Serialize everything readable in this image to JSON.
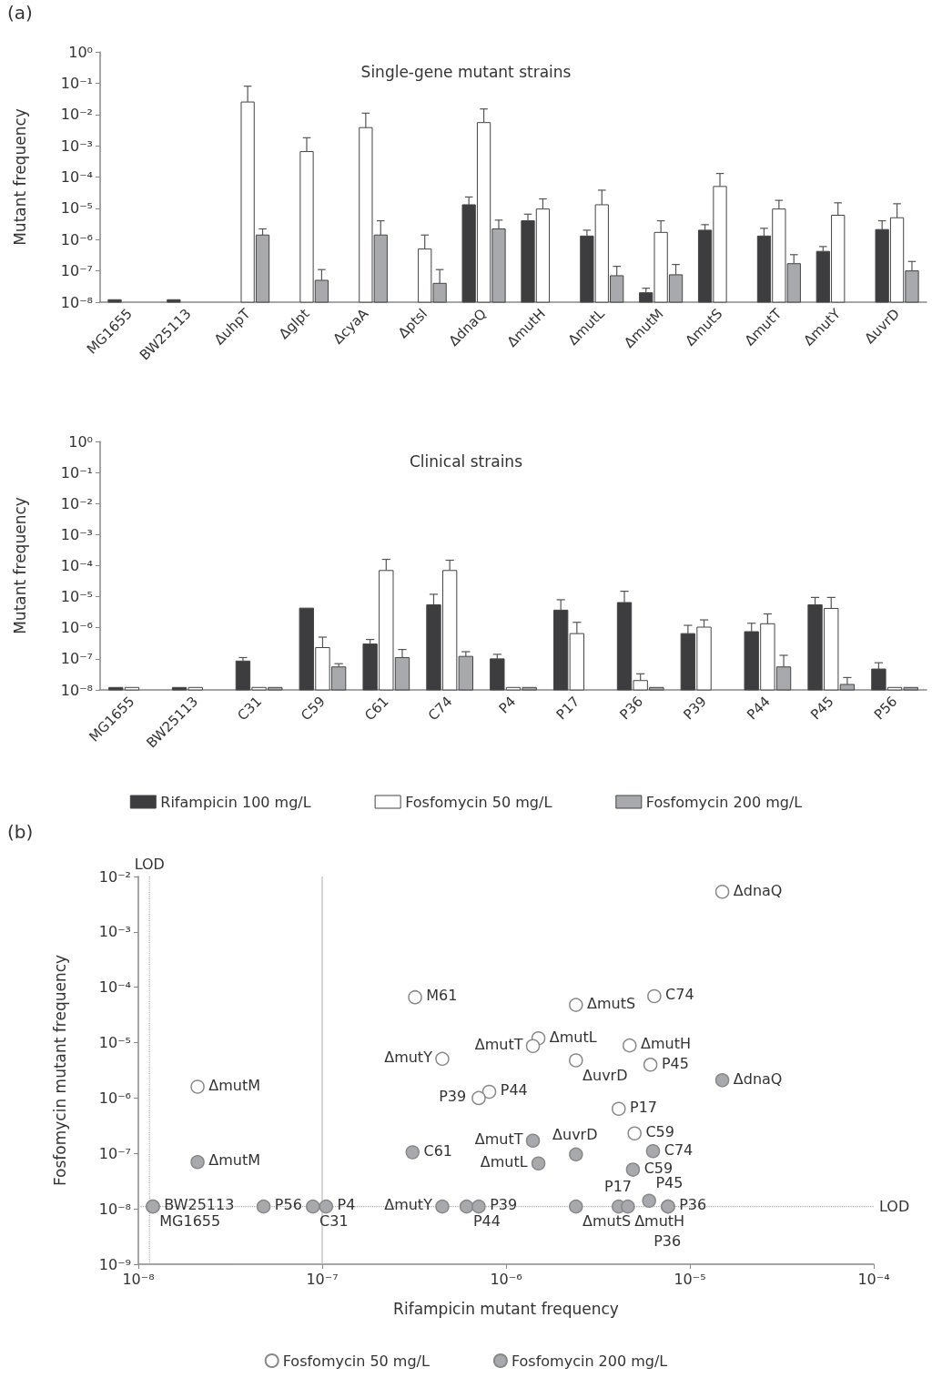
{
  "chart_data": [
    {
      "type": "bar",
      "title": "Single-gene mutant strains",
      "ylabel": "Mutant frequency",
      "annotations": [
        "(a)"
      ],
      "categories": [
        "MG1655",
        "BW25113",
        "ΔuhpT",
        "Δglpt",
        "ΔcyaA",
        "Δptsl",
        "ΔdnaQ",
        "ΔmutH",
        "ΔmutL",
        "ΔmutM",
        "ΔmutS",
        "ΔmutT",
        "ΔmutY",
        "ΔuvrD"
      ],
      "log": "y",
      "ylim": [
        1e-08,
        1
      ],
      "yticks": [
        {
          "value": 1,
          "label": "10⁰"
        },
        {
          "value": 0.1,
          "label": "10⁻¹"
        },
        {
          "value": 0.01,
          "label": "10⁻²"
        },
        {
          "value": 0.001,
          "label": "10⁻³"
        },
        {
          "value": 0.0001,
          "label": "10⁻⁴"
        },
        {
          "value": 1e-05,
          "label": "10⁻⁵"
        },
        {
          "value": 1e-06,
          "label": "10⁻⁶"
        },
        {
          "value": 1e-07,
          "label": "10⁻⁷"
        },
        {
          "value": 1e-08,
          "label": "10⁻⁸"
        }
      ],
      "grid": false,
      "legend": false,
      "series": [
        {
          "color": "#3d3d3f",
          "values": [
            1.2e-08,
            1.2e-08,
            null,
            null,
            null,
            null,
            1.3e-05,
            4e-06,
            1.3e-06,
            2e-08,
            2e-06,
            1.3e-06,
            4.2e-07,
            2.1e-06
          ],
          "errors": [
            null,
            null,
            null,
            null,
            null,
            null,
            [
              1.3e-05,
              2.3e-05
            ],
            [
              4e-06,
              6.5e-06
            ],
            [
              1.3e-06,
              2e-06
            ],
            [
              2e-08,
              2.8e-08
            ],
            [
              2e-06,
              3e-06
            ],
            [
              1.3e-06,
              2.3e-06
            ],
            [
              4.2e-07,
              6e-07
            ],
            [
              2.1e-06,
              4e-06
            ]
          ]
        },
        {
          "color": "#ffffff",
          "values": [
            null,
            null,
            0.025,
            0.00065,
            0.0038,
            5e-07,
            0.0055,
            9.5e-06,
            1.3e-05,
            1.7e-06,
            5e-05,
            9.5e-06,
            6e-06,
            5e-06
          ],
          "errors": [
            null,
            null,
            [
              0.025,
              0.08
            ],
            [
              0.00065,
              0.0018
            ],
            [
              0.0038,
              0.011
            ],
            [
              5e-07,
              1.4e-06
            ],
            [
              0.0055,
              0.015
            ],
            [
              9.5e-06,
              2e-05
            ],
            [
              1.3e-05,
              3.8e-05
            ],
            [
              1.7e-06,
              4e-06
            ],
            [
              5e-05,
              0.00013
            ],
            [
              9.5e-06,
              1.8e-05
            ],
            [
              6e-06,
              1.5e-05
            ],
            [
              5e-06,
              1.4e-05
            ]
          ]
        },
        {
          "color": "#a7a9ac",
          "values": [
            null,
            null,
            1.4e-06,
            5e-08,
            1.4e-06,
            4e-08,
            2.2e-06,
            null,
            7e-08,
            7.5e-08,
            null,
            1.7e-07,
            null,
            1e-07
          ],
          "errors": [
            null,
            null,
            [
              1.4e-06,
              2.2e-06
            ],
            [
              5e-08,
              1.1e-07
            ],
            [
              1.4e-06,
              4e-06
            ],
            [
              4e-08,
              1.1e-07
            ],
            [
              2.2e-06,
              4.2e-06
            ],
            null,
            [
              7e-08,
              1.4e-07
            ],
            [
              7.5e-08,
              1.6e-07
            ],
            null,
            [
              1.7e-07,
              3.3e-07
            ],
            null,
            [
              1e-07,
              2e-07
            ]
          ]
        }
      ]
    },
    {
      "type": "bar",
      "title": "Clinical strains",
      "ylabel": "Mutant frequency",
      "categories": [
        "MG1655",
        "BW25113",
        "C31",
        "C59",
        "C61",
        "C74",
        "P4",
        "P17",
        "P36",
        "P39",
        "P44",
        "P45",
        "P56"
      ],
      "log": "y",
      "ylim": [
        1e-08,
        1
      ],
      "yticks": [
        {
          "value": 1,
          "label": "10⁰"
        },
        {
          "value": 0.1,
          "label": "10⁻¹"
        },
        {
          "value": 0.01,
          "label": "10⁻²"
        },
        {
          "value": 0.001,
          "label": "10⁻³"
        },
        {
          "value": 0.0001,
          "label": "10⁻⁴"
        },
        {
          "value": 1e-05,
          "label": "10⁻⁵"
        },
        {
          "value": 1e-06,
          "label": "10⁻⁶"
        },
        {
          "value": 1e-07,
          "label": "10⁻⁷"
        },
        {
          "value": 1e-08,
          "label": "10⁻⁸"
        }
      ],
      "grid": false,
      "legend": "bottom",
      "series": [
        {
          "name": "Rifampicin 100 mg/L",
          "color": "#3d3d3f",
          "values": [
            1.2e-08,
            1.2e-08,
            8.5e-08,
            4.3e-06,
            3e-07,
            5.5e-06,
            1e-07,
            3.7e-06,
            6.5e-06,
            6.5e-07,
            7.5e-07,
            5.5e-06,
            4.7e-08
          ],
          "errors": [
            null,
            null,
            [
              8.5e-08,
              1.1e-07
            ],
            null,
            [
              3e-07,
              4.2e-07
            ],
            [
              5.5e-06,
              1.2e-05
            ],
            [
              1e-07,
              1.4e-07
            ],
            [
              3.7e-06,
              8e-06
            ],
            [
              6.5e-06,
              1.5e-05
            ],
            [
              6.5e-07,
              1.2e-06
            ],
            [
              7.5e-07,
              1.4e-06
            ],
            [
              5.5e-06,
              9.5e-06
            ],
            [
              4.7e-08,
              7.5e-08
            ]
          ]
        },
        {
          "name": "Fosfomycin 50 mg/L",
          "color": "#ffffff",
          "values": [
            1.2e-08,
            1.2e-08,
            1.2e-08,
            2.3e-07,
            7e-05,
            7e-05,
            1.2e-08,
            6.5e-07,
            2e-08,
            1.05e-06,
            1.35e-06,
            4.2e-06,
            1.2e-08
          ],
          "errors": [
            null,
            null,
            null,
            [
              2.3e-07,
              5e-07
            ],
            [
              7e-05,
              0.00016
            ],
            [
              7e-05,
              0.00015
            ],
            null,
            [
              6.5e-07,
              1.5e-06
            ],
            [
              2e-08,
              3.3e-08
            ],
            [
              1.05e-06,
              1.8e-06
            ],
            [
              1.35e-06,
              2.8e-06
            ],
            [
              4.2e-06,
              9.5e-06
            ],
            null
          ]
        },
        {
          "name": "Fosfomycin 200 mg/L",
          "color": "#a7a9ac",
          "values": [
            null,
            null,
            1.2e-08,
            5.5e-08,
            1.1e-07,
            1.2e-07,
            1.2e-08,
            null,
            1.2e-08,
            null,
            5.5e-08,
            1.5e-08,
            1.2e-08
          ],
          "errors": [
            null,
            null,
            null,
            [
              5.5e-08,
              7e-08
            ],
            [
              1.1e-07,
              2e-07
            ],
            [
              1.2e-07,
              1.7e-07
            ],
            null,
            null,
            null,
            null,
            [
              5.5e-08,
              1.3e-07
            ],
            [
              1.5e-08,
              2.5e-08
            ],
            null
          ]
        }
      ]
    },
    {
      "type": "scatter",
      "annotations": [
        "(b)"
      ],
      "xlabel": "Rifampicin mutant frequency",
      "ylabel": "Fosfomycin mutant frequency",
      "log": "xy",
      "xlim": [
        1e-08,
        0.0001
      ],
      "ylim": [
        1e-09,
        0.01
      ],
      "xticks": [
        {
          "value": 1e-08,
          "label": "10⁻⁸"
        },
        {
          "value": 1e-07,
          "label": "10⁻⁷"
        },
        {
          "value": 1e-06,
          "label": "10⁻⁶"
        },
        {
          "value": 1e-05,
          "label": "10⁻⁵"
        },
        {
          "value": 0.0001,
          "label": "10⁻⁴"
        }
      ],
      "yticks": [
        {
          "value": 0.01,
          "label": "10⁻²"
        },
        {
          "value": 0.001,
          "label": "10⁻³"
        },
        {
          "value": 0.0001,
          "label": "10⁻⁴"
        },
        {
          "value": 1e-05,
          "label": "10⁻⁵"
        },
        {
          "value": 1e-06,
          "label": "10⁻⁶"
        },
        {
          "value": 1e-07,
          "label": "10⁻⁷"
        },
        {
          "value": 1e-08,
          "label": "10⁻⁸"
        },
        {
          "value": 1e-09,
          "label": "10⁻⁹"
        }
      ],
      "grid": false,
      "legend": "bottom",
      "marker": "circle",
      "ref_lines": [
        {
          "axis": "x",
          "value": 1.15e-08,
          "label": "LOD",
          "line_style": "dotted",
          "color": "#aaaaaa"
        },
        {
          "axis": "x",
          "value": 1e-07,
          "label": null,
          "line_style": "solid",
          "color": "#bbbbbb"
        },
        {
          "axis": "y",
          "value": 1.1e-08,
          "label": "LOD",
          "line_style": "dotted",
          "color": "#aaaaaa"
        }
      ],
      "series": [
        {
          "name": "Fosfomycin 50 mg/L",
          "color": "#ffffff",
          "x": [
            1.5e-05,
            3.2e-07,
            2.4e-06,
            6.4e-06,
            1.5e-06,
            1.4e-06,
            4.5e-07,
            4.7e-06,
            2.4e-06,
            6.1e-06,
            8.1e-07,
            7.1e-07,
            2.1e-08,
            4.1e-06,
            5e-06
          ],
          "values": [
            0.0053,
            6.6e-05,
            4.8e-05,
            6.9e-05,
            1.2e-05,
            8.7e-06,
            5.1e-06,
            8.9e-06,
            4.8e-06,
            4e-06,
            1.3e-06,
            1e-06,
            1.6e-06,
            6.4e-07,
            2.3e-07
          ],
          "value_labels": [
            "ΔdnaQ",
            "M61",
            "ΔmutS",
            "C74",
            "ΔmutL",
            "ΔmutT",
            "ΔmutY",
            "ΔmutH",
            "ΔuvrD",
            "P45",
            "P44",
            "P39",
            "ΔmutM",
            "P17",
            "C59"
          ]
        },
        {
          "name": "Fosfomycin 200 mg/L",
          "color": "#a7a9ac",
          "x": [
            1.5e-05,
            1.4e-06,
            6.3e-06,
            3.1e-07,
            2.4e-06,
            1.5e-06,
            2.1e-08,
            4.9e-06,
            1.2e-08,
            1.2e-08,
            4.8e-08,
            8.9e-08,
            1.05e-07,
            4.5e-07,
            6.1e-07,
            7.1e-07,
            2.4e-06,
            4.1e-06,
            4.6e-06,
            6e-06,
            7.6e-06,
            7.6e-06
          ],
          "values": [
            2.1e-06,
            1.7e-07,
            1.1e-07,
            1.05e-07,
            9.6e-08,
            6.6e-08,
            7e-08,
            5.1e-08,
            1.1e-08,
            1.1e-08,
            1.1e-08,
            1.1e-08,
            1.1e-08,
            1.1e-08,
            1.1e-08,
            1.1e-08,
            1.1e-08,
            1.1e-08,
            1.1e-08,
            1.4e-08,
            1.1e-08,
            1.1e-08
          ],
          "value_labels": [
            "ΔdnaQ",
            "ΔmutT",
            "C74",
            "C61",
            "ΔuvrD",
            "ΔmutL",
            "ΔmutM",
            "C59",
            "BW25113",
            "MG1655",
            "P56",
            "C31",
            "P4",
            "ΔmutY",
            "P44",
            "P39",
            "ΔmutS",
            "P17",
            "ΔmutH",
            "P45",
            "P36",
            "P36"
          ]
        }
      ]
    }
  ]
}
